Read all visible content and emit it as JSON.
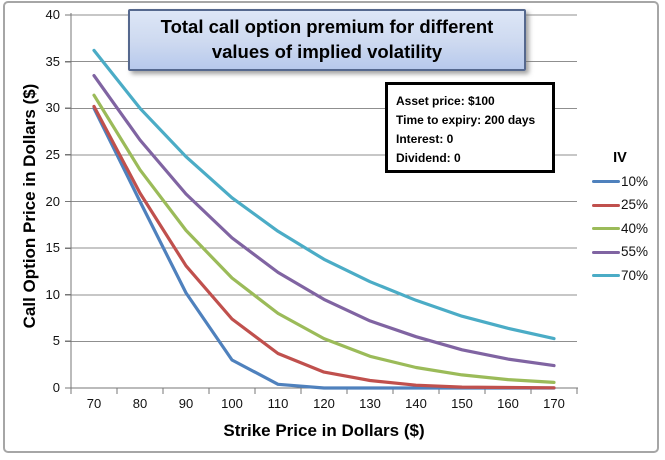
{
  "chart_data": {
    "type": "line",
    "title": "Total call option premium for different values of implied volatility",
    "xlabel": "Strike Price in Dollars ($)",
    "ylabel": "Call Option Price in Dollars ($)",
    "categories": [
      70,
      80,
      90,
      100,
      110,
      120,
      130,
      140,
      150,
      160,
      170
    ],
    "ylim": [
      0,
      40
    ],
    "yticks": [
      0,
      5,
      10,
      15,
      20,
      25,
      30,
      35,
      40
    ],
    "grid": "horizontal-major",
    "legend_title": "IV",
    "legend_position": "right",
    "series": [
      {
        "name": "10%",
        "color": "#4F81BD",
        "values": [
          30.0,
          20.0,
          10.2,
          3.0,
          0.4,
          0.0,
          0.0,
          0.0,
          0.0,
          0.0,
          0.0
        ]
      },
      {
        "name": "25%",
        "color": "#C0504D",
        "values": [
          30.2,
          20.9,
          13.1,
          7.4,
          3.7,
          1.7,
          0.8,
          0.3,
          0.1,
          0.05,
          0.02
        ]
      },
      {
        "name": "40%",
        "color": "#9BBB59",
        "values": [
          31.4,
          23.4,
          16.9,
          11.8,
          8.0,
          5.3,
          3.4,
          2.2,
          1.4,
          0.9,
          0.6
        ]
      },
      {
        "name": "55%",
        "color": "#8064A2",
        "values": [
          33.5,
          26.6,
          20.8,
          16.1,
          12.4,
          9.5,
          7.2,
          5.5,
          4.1,
          3.1,
          2.4
        ]
      },
      {
        "name": "70%",
        "color": "#4BACC6",
        "values": [
          36.2,
          30.0,
          24.8,
          20.4,
          16.8,
          13.8,
          11.4,
          9.4,
          7.7,
          6.4,
          5.3
        ]
      }
    ],
    "annotation": {
      "lines": [
        "Asset price: $100",
        "Time to expiry: 200 days",
        "Interest: 0",
        "Dividend: 0"
      ]
    },
    "colors": {
      "gridline": "#8f8f8f",
      "axis": "#777777",
      "title_box_border": "#55688e",
      "title_box_fill_top": "#dde6f6",
      "title_box_fill_bottom": "#b7c9ec"
    }
  }
}
